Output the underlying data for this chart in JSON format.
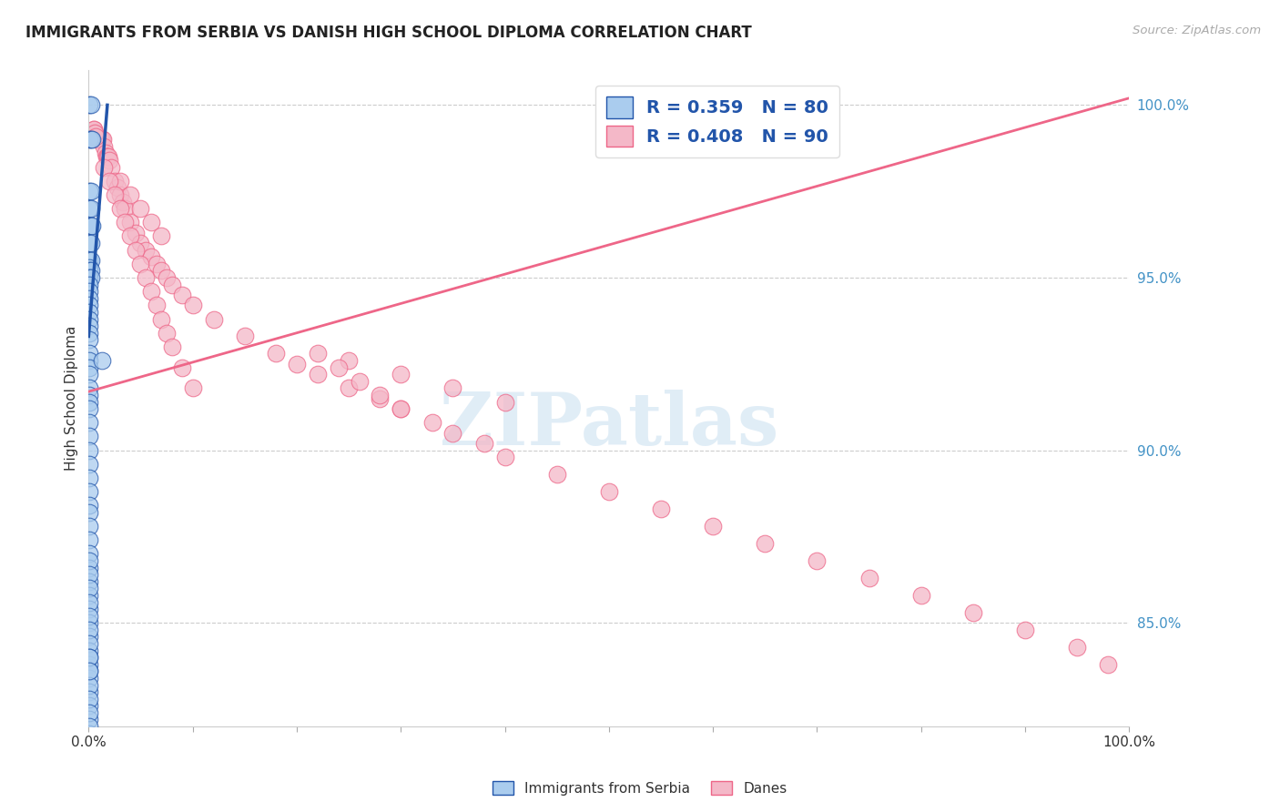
{
  "title": "IMMIGRANTS FROM SERBIA VS DANISH HIGH SCHOOL DIPLOMA CORRELATION CHART",
  "source": "Source: ZipAtlas.com",
  "ylabel": "High School Diploma",
  "yticks": [
    "100.0%",
    "95.0%",
    "90.0%",
    "85.0%"
  ],
  "ytick_positions": [
    1.0,
    0.95,
    0.9,
    0.85
  ],
  "color_blue": "#aaccee",
  "color_pink": "#f4b8c8",
  "color_blue_line": "#2255aa",
  "color_pink_line": "#ee6688",
  "watermark": "ZIPatlas",
  "serbia_x": [
    0.001,
    0.002,
    0.001,
    0.002,
    0.003,
    0.001,
    0.002,
    0.001,
    0.002,
    0.001,
    0.002,
    0.003,
    0.001,
    0.002,
    0.001,
    0.002,
    0.001,
    0.001,
    0.002,
    0.001,
    0.002,
    0.001,
    0.001,
    0.001,
    0.001,
    0.001,
    0.001,
    0.001,
    0.001,
    0.001,
    0.001,
    0.001,
    0.001,
    0.001,
    0.001,
    0.001,
    0.001,
    0.001,
    0.001,
    0.001,
    0.001,
    0.001,
    0.001,
    0.001,
    0.001,
    0.001,
    0.001,
    0.001,
    0.001,
    0.001,
    0.001,
    0.001,
    0.001,
    0.001,
    0.013,
    0.001,
    0.001,
    0.001,
    0.001,
    0.001,
    0.001,
    0.001,
    0.001,
    0.001,
    0.001,
    0.001,
    0.001,
    0.001,
    0.001,
    0.001,
    0.001,
    0.001,
    0.001,
    0.001,
    0.001,
    0.001,
    0.001,
    0.001,
    0.001,
    0.001
  ],
  "serbia_y": [
    1.0,
    1.0,
    0.99,
    0.99,
    0.99,
    0.975,
    0.975,
    0.97,
    0.97,
    0.965,
    0.965,
    0.965,
    0.96,
    0.96,
    0.955,
    0.955,
    0.953,
    0.952,
    0.952,
    0.95,
    0.95,
    0.948,
    0.946,
    0.944,
    0.942,
    0.94,
    0.938,
    0.936,
    0.934,
    0.932,
    0.928,
    0.926,
    0.924,
    0.922,
    0.918,
    0.916,
    0.914,
    0.912,
    0.908,
    0.904,
    0.9,
    0.896,
    0.892,
    0.888,
    0.884,
    0.882,
    0.878,
    0.874,
    0.87,
    0.866,
    0.862,
    0.858,
    0.854,
    0.85,
    0.926,
    0.846,
    0.842,
    0.838,
    0.834,
    0.83,
    0.826,
    0.822,
    0.818,
    0.814,
    0.868,
    0.864,
    0.86,
    0.856,
    0.852,
    0.848,
    0.844,
    0.84,
    0.836,
    0.832,
    0.828,
    0.824,
    0.82,
    0.816,
    0.84,
    0.836
  ],
  "danes_x": [
    0.005,
    0.006,
    0.007,
    0.008,
    0.009,
    0.01,
    0.011,
    0.012,
    0.013,
    0.014,
    0.015,
    0.016,
    0.017,
    0.018,
    0.019,
    0.02,
    0.022,
    0.025,
    0.028,
    0.03,
    0.033,
    0.035,
    0.04,
    0.045,
    0.05,
    0.055,
    0.06,
    0.065,
    0.07,
    0.075,
    0.08,
    0.09,
    0.1,
    0.12,
    0.15,
    0.18,
    0.2,
    0.22,
    0.25,
    0.28,
    0.3,
    0.33,
    0.35,
    0.38,
    0.4,
    0.45,
    0.5,
    0.55,
    0.6,
    0.65,
    0.7,
    0.75,
    0.8,
    0.85,
    0.9,
    0.95,
    0.98,
    0.03,
    0.04,
    0.05,
    0.06,
    0.07,
    0.015,
    0.02,
    0.025,
    0.03,
    0.035,
    0.04,
    0.045,
    0.05,
    0.055,
    0.06,
    0.065,
    0.07,
    0.075,
    0.08,
    0.09,
    0.1,
    0.25,
    0.3,
    0.35,
    0.4,
    0.22,
    0.24,
    0.26,
    0.28,
    0.3,
    0.005,
    0.006,
    0.007
  ],
  "danes_y": [
    0.993,
    0.992,
    0.991,
    0.99,
    0.99,
    0.99,
    0.99,
    0.99,
    0.99,
    0.99,
    0.988,
    0.986,
    0.985,
    0.985,
    0.985,
    0.984,
    0.982,
    0.978,
    0.976,
    0.974,
    0.972,
    0.97,
    0.966,
    0.963,
    0.96,
    0.958,
    0.956,
    0.954,
    0.952,
    0.95,
    0.948,
    0.945,
    0.942,
    0.938,
    0.933,
    0.928,
    0.925,
    0.922,
    0.918,
    0.915,
    0.912,
    0.908,
    0.905,
    0.902,
    0.898,
    0.893,
    0.888,
    0.883,
    0.878,
    0.873,
    0.868,
    0.863,
    0.858,
    0.853,
    0.848,
    0.843,
    0.838,
    0.978,
    0.974,
    0.97,
    0.966,
    0.962,
    0.982,
    0.978,
    0.974,
    0.97,
    0.966,
    0.962,
    0.958,
    0.954,
    0.95,
    0.946,
    0.942,
    0.938,
    0.934,
    0.93,
    0.924,
    0.918,
    0.926,
    0.922,
    0.918,
    0.914,
    0.928,
    0.924,
    0.92,
    0.916,
    0.912,
    0.993,
    0.992,
    0.991
  ],
  "xlim": [
    0.0,
    1.0
  ],
  "ylim": [
    0.82,
    1.01
  ],
  "blue_line_x": [
    0.0,
    0.018
  ],
  "blue_line_y": [
    0.933,
    1.0
  ],
  "pink_line_x": [
    0.0,
    1.0
  ],
  "pink_line_y": [
    0.917,
    1.002
  ]
}
